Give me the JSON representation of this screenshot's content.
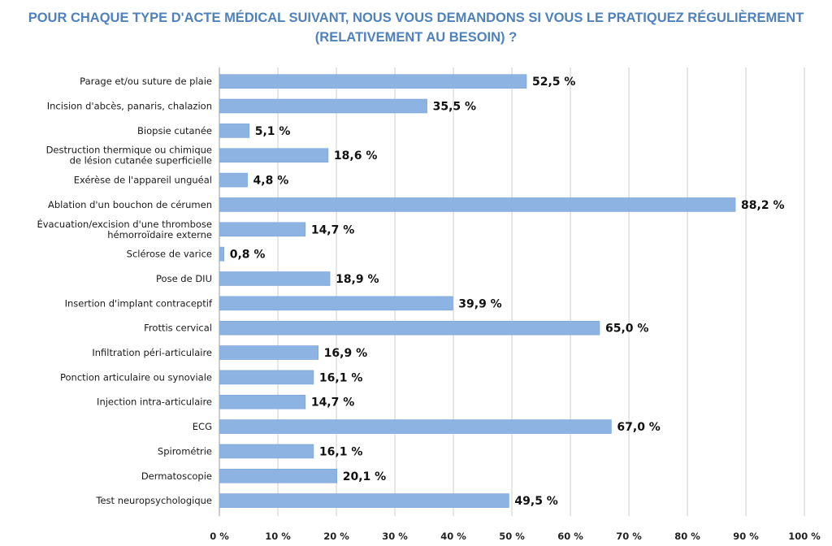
{
  "title_line1": "POUR CHAQUE TYPE D'ACTE MÉDICAL SUIVANT, NOUS VOUS DEMANDONS SI VOUS LE PRATIQUEZ RÉGULIÈREMENT",
  "title_line2": "(RELATIVEMENT AU BESOIN) ?",
  "colors": {
    "bar": "#8db3e2",
    "bar_stroke": "#7aa3d6",
    "grid": "#cfcfcf",
    "title": "#4f81bd"
  },
  "chart_data": {
    "type": "bar",
    "orientation": "horizontal",
    "title": "POUR CHAQUE TYPE D'ACTE MÉDICAL SUIVANT, NOUS VOUS DEMANDONS SI VOUS LE PRATIQUEZ RÉGULIÈREMENT (RELATIVEMENT AU BESOIN) ?",
    "categories": [
      [
        "Parage et/ou suture de plaie"
      ],
      [
        "Incision d'abcès, panaris, chalazion"
      ],
      [
        "Biopsie cutanée"
      ],
      [
        "Destruction thermique ou chimique",
        "de lésion cutanée superficielle"
      ],
      [
        "Exérèse de l'appareil unguéal"
      ],
      [
        "Ablation d'un bouchon de cérumen"
      ],
      [
        "Évacuation/excision d'une thrombose",
        "hémorroïdaire externe"
      ],
      [
        "Sclérose de varice"
      ],
      [
        "Pose de DIU"
      ],
      [
        "Insertion d'implant contraceptif"
      ],
      [
        "Frottis cervical"
      ],
      [
        "Infiltration péri-articulaire"
      ],
      [
        "Ponction articulaire ou synoviale"
      ],
      [
        "Injection intra-articulaire"
      ],
      [
        "ECG"
      ],
      [
        "Spirométrie"
      ],
      [
        "Dermatoscopie"
      ],
      [
        "Test neuropsychologique"
      ]
    ],
    "values": [
      52.5,
      35.5,
      5.1,
      18.6,
      4.8,
      88.2,
      14.7,
      0.8,
      18.9,
      39.9,
      65.0,
      16.9,
      16.1,
      14.7,
      67.0,
      16.1,
      20.1,
      49.5
    ],
    "value_labels": [
      "52,5 %",
      "35,5 %",
      "5,1 %",
      "18,6 %",
      "4,8 %",
      "88,2 %",
      "14,7 %",
      "0,8 %",
      "18,9 %",
      "39,9 %",
      "65,0 %",
      "16,9 %",
      "16,1 %",
      "14,7 %",
      "67,0 %",
      "16,1 %",
      "20,1 %",
      "49,5 %"
    ],
    "xlim": [
      0,
      100
    ],
    "xticks": [
      0,
      10,
      20,
      30,
      40,
      50,
      60,
      70,
      80,
      90,
      100
    ],
    "xtick_labels": [
      "0 %",
      "10 %",
      "20 %",
      "30 %",
      "40 %",
      "50 %",
      "60 %",
      "70 %",
      "80 %",
      "90 %",
      "100 %"
    ],
    "grid": true,
    "legend": "none"
  }
}
